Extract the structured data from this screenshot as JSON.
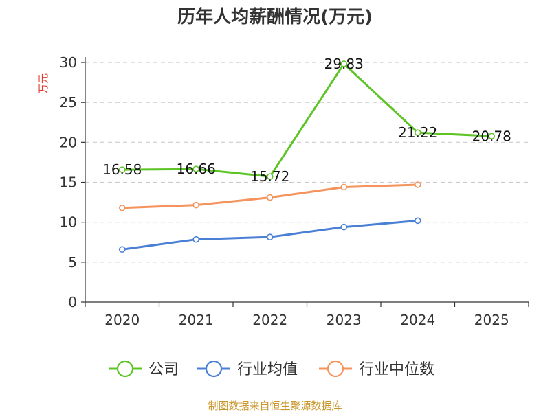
{
  "chart_data": {
    "type": "line",
    "title": "历年人均薪酬情况(万元)",
    "ylabel": "万元",
    "categories": [
      "2020",
      "2021",
      "2022",
      "2023",
      "2024",
      "2025"
    ],
    "ylim": [
      0,
      30
    ],
    "yticks": [
      0,
      5,
      10,
      15,
      20,
      25,
      30
    ],
    "grid": true,
    "legend_position": "bottom",
    "series": [
      {
        "name": "公司",
        "color": "#5cc425",
        "values": [
          16.58,
          16.66,
          15.72,
          29.83,
          21.22,
          20.78
        ],
        "labels": [
          "16.58",
          "16.66",
          "15.72",
          "29.83",
          "21.22",
          "20.78"
        ]
      },
      {
        "name": "行业均值",
        "color": "#4a7fd6",
        "values": [
          6.6,
          7.85,
          8.15,
          9.4,
          10.2,
          null
        ]
      },
      {
        "name": "行业中位数",
        "color": "#f4935c",
        "values": [
          11.8,
          12.15,
          13.1,
          14.4,
          14.7,
          null
        ]
      }
    ],
    "source": "制图数据来自恒生聚源数据库",
    "colors": {
      "title": "#333333",
      "ylabel": "#e03c31",
      "source": "#c9962a",
      "grid": "#cccccc",
      "axis": "#333333"
    }
  }
}
